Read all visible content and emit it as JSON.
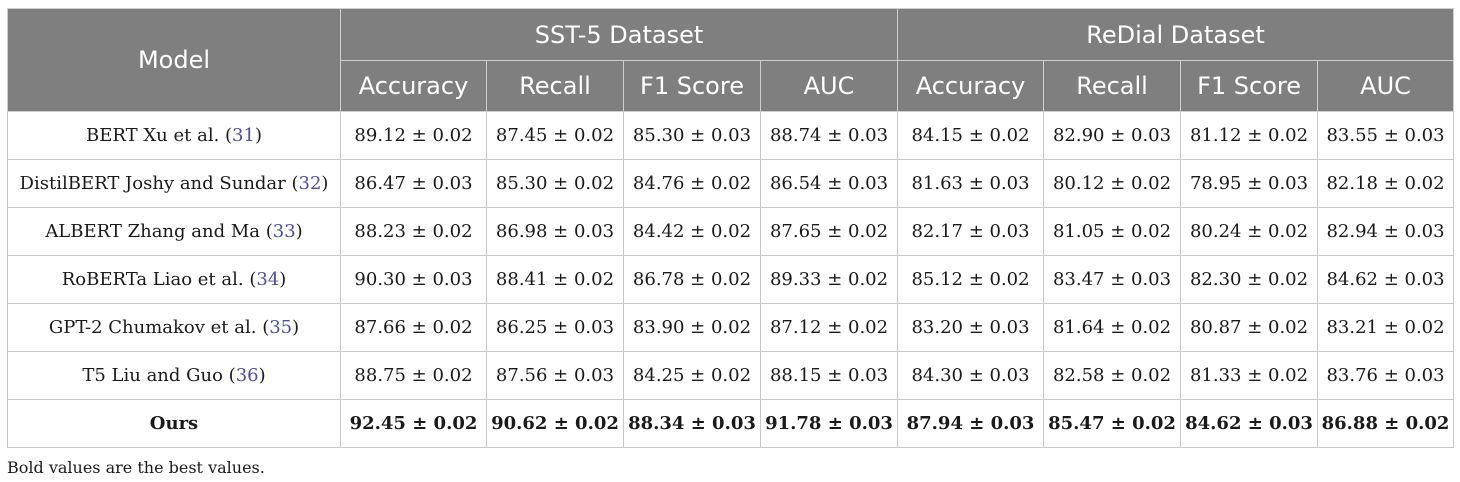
{
  "table": {
    "model_header": "Model",
    "groups": [
      "SST-5 Dataset",
      "ReDial Dataset"
    ],
    "metrics": [
      "Accuracy",
      "Recall",
      "F1 Score",
      "AUC"
    ],
    "rows": [
      {
        "model": "BERT Xu et al. (",
        "ref": "31",
        "close": ")",
        "best": false,
        "values": [
          "89.12 ± 0.02",
          "87.45 ± 0.02",
          "85.30 ± 0.03",
          "88.74 ± 0.03",
          "84.15 ± 0.02",
          "82.90 ± 0.03",
          "81.12 ± 0.02",
          "83.55 ± 0.03"
        ]
      },
      {
        "model": "DistilBERT Joshy and Sundar (",
        "ref": "32",
        "close": ")",
        "best": false,
        "values": [
          "86.47 ± 0.03",
          "85.30 ± 0.02",
          "84.76 ± 0.02",
          "86.54 ± 0.03",
          "81.63 ± 0.03",
          "80.12 ± 0.02",
          "78.95 ± 0.03",
          "82.18 ± 0.02"
        ]
      },
      {
        "model": "ALBERT Zhang and Ma (",
        "ref": "33",
        "close": ")",
        "best": false,
        "values": [
          "88.23 ± 0.02",
          "86.98 ± 0.03",
          "84.42 ± 0.02",
          "87.65 ± 0.02",
          "82.17 ± 0.03",
          "81.05 ± 0.02",
          "80.24 ± 0.02",
          "82.94 ± 0.03"
        ]
      },
      {
        "model": "RoBERTa Liao et al. (",
        "ref": "34",
        "close": ")",
        "best": false,
        "values": [
          "90.30 ± 0.03",
          "88.41 ± 0.02",
          "86.78 ± 0.02",
          "89.33 ± 0.02",
          "85.12 ± 0.02",
          "83.47 ± 0.03",
          "82.30 ± 0.02",
          "84.62 ± 0.03"
        ]
      },
      {
        "model": "GPT-2 Chumakov et al. (",
        "ref": "35",
        "close": ")",
        "best": false,
        "values": [
          "87.66 ± 0.02",
          "86.25 ± 0.03",
          "83.90 ± 0.02",
          "87.12 ± 0.02",
          "83.20 ± 0.03",
          "81.64 ± 0.02",
          "80.87 ± 0.02",
          "83.21 ± 0.02"
        ]
      },
      {
        "model": "T5 Liu and Guo (",
        "ref": "36",
        "close": ")",
        "best": false,
        "values": [
          "88.75 ± 0.02",
          "87.56 ± 0.03",
          "84.25 ± 0.02",
          "88.15 ± 0.03",
          "84.30 ± 0.03",
          "82.58 ± 0.02",
          "81.33 ± 0.02",
          "83.76 ± 0.03"
        ]
      },
      {
        "model": "Ours",
        "ref": "",
        "close": "",
        "best": true,
        "values": [
          "92.45 ± 0.02",
          "90.62 ± 0.02",
          "88.34 ± 0.03",
          "91.78 ± 0.03",
          "87.94 ± 0.03",
          "85.47 ± 0.02",
          "84.62 ± 0.03",
          "86.88 ± 0.02"
        ]
      }
    ]
  },
  "footnote": "Bold values are the best values."
}
